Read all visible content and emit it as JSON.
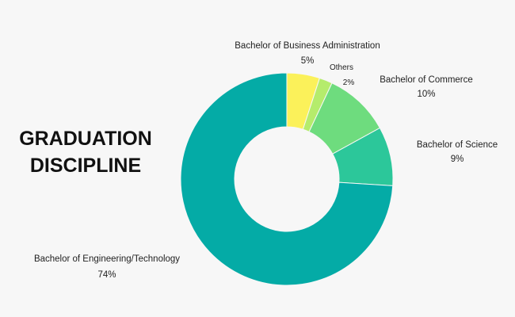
{
  "title": {
    "line1": "GRADUATION",
    "line2": "DISCIPLINE"
  },
  "colors": {
    "background": "#f7f7f7",
    "engineering": "#04aba6",
    "business": "#fbf15a",
    "others": "#b5ec6c",
    "commerce": "#6edc7e",
    "science": "#2cc79a"
  },
  "chart_data": {
    "type": "pie",
    "variant": "donut",
    "title": "GRADUATION DISCIPLINE",
    "legend": "none (direct labels)",
    "slices": [
      {
        "label": "Bachelor of Business Administration",
        "value": 5,
        "value_label": "5%",
        "color": "#fbf15a"
      },
      {
        "label": "Others",
        "value": 2,
        "value_label": "2%",
        "color": "#b5ec6c"
      },
      {
        "label": "Bachelor of Commerce",
        "value": 10,
        "value_label": "10%",
        "color": "#6edc7e"
      },
      {
        "label": "Bachelor of Science",
        "value": 9,
        "value_label": "9%",
        "color": "#2cc79a"
      },
      {
        "label": "Bachelor of Engineering/Technology",
        "value": 74,
        "value_label": "74%",
        "color": "#04aba6"
      }
    ]
  }
}
